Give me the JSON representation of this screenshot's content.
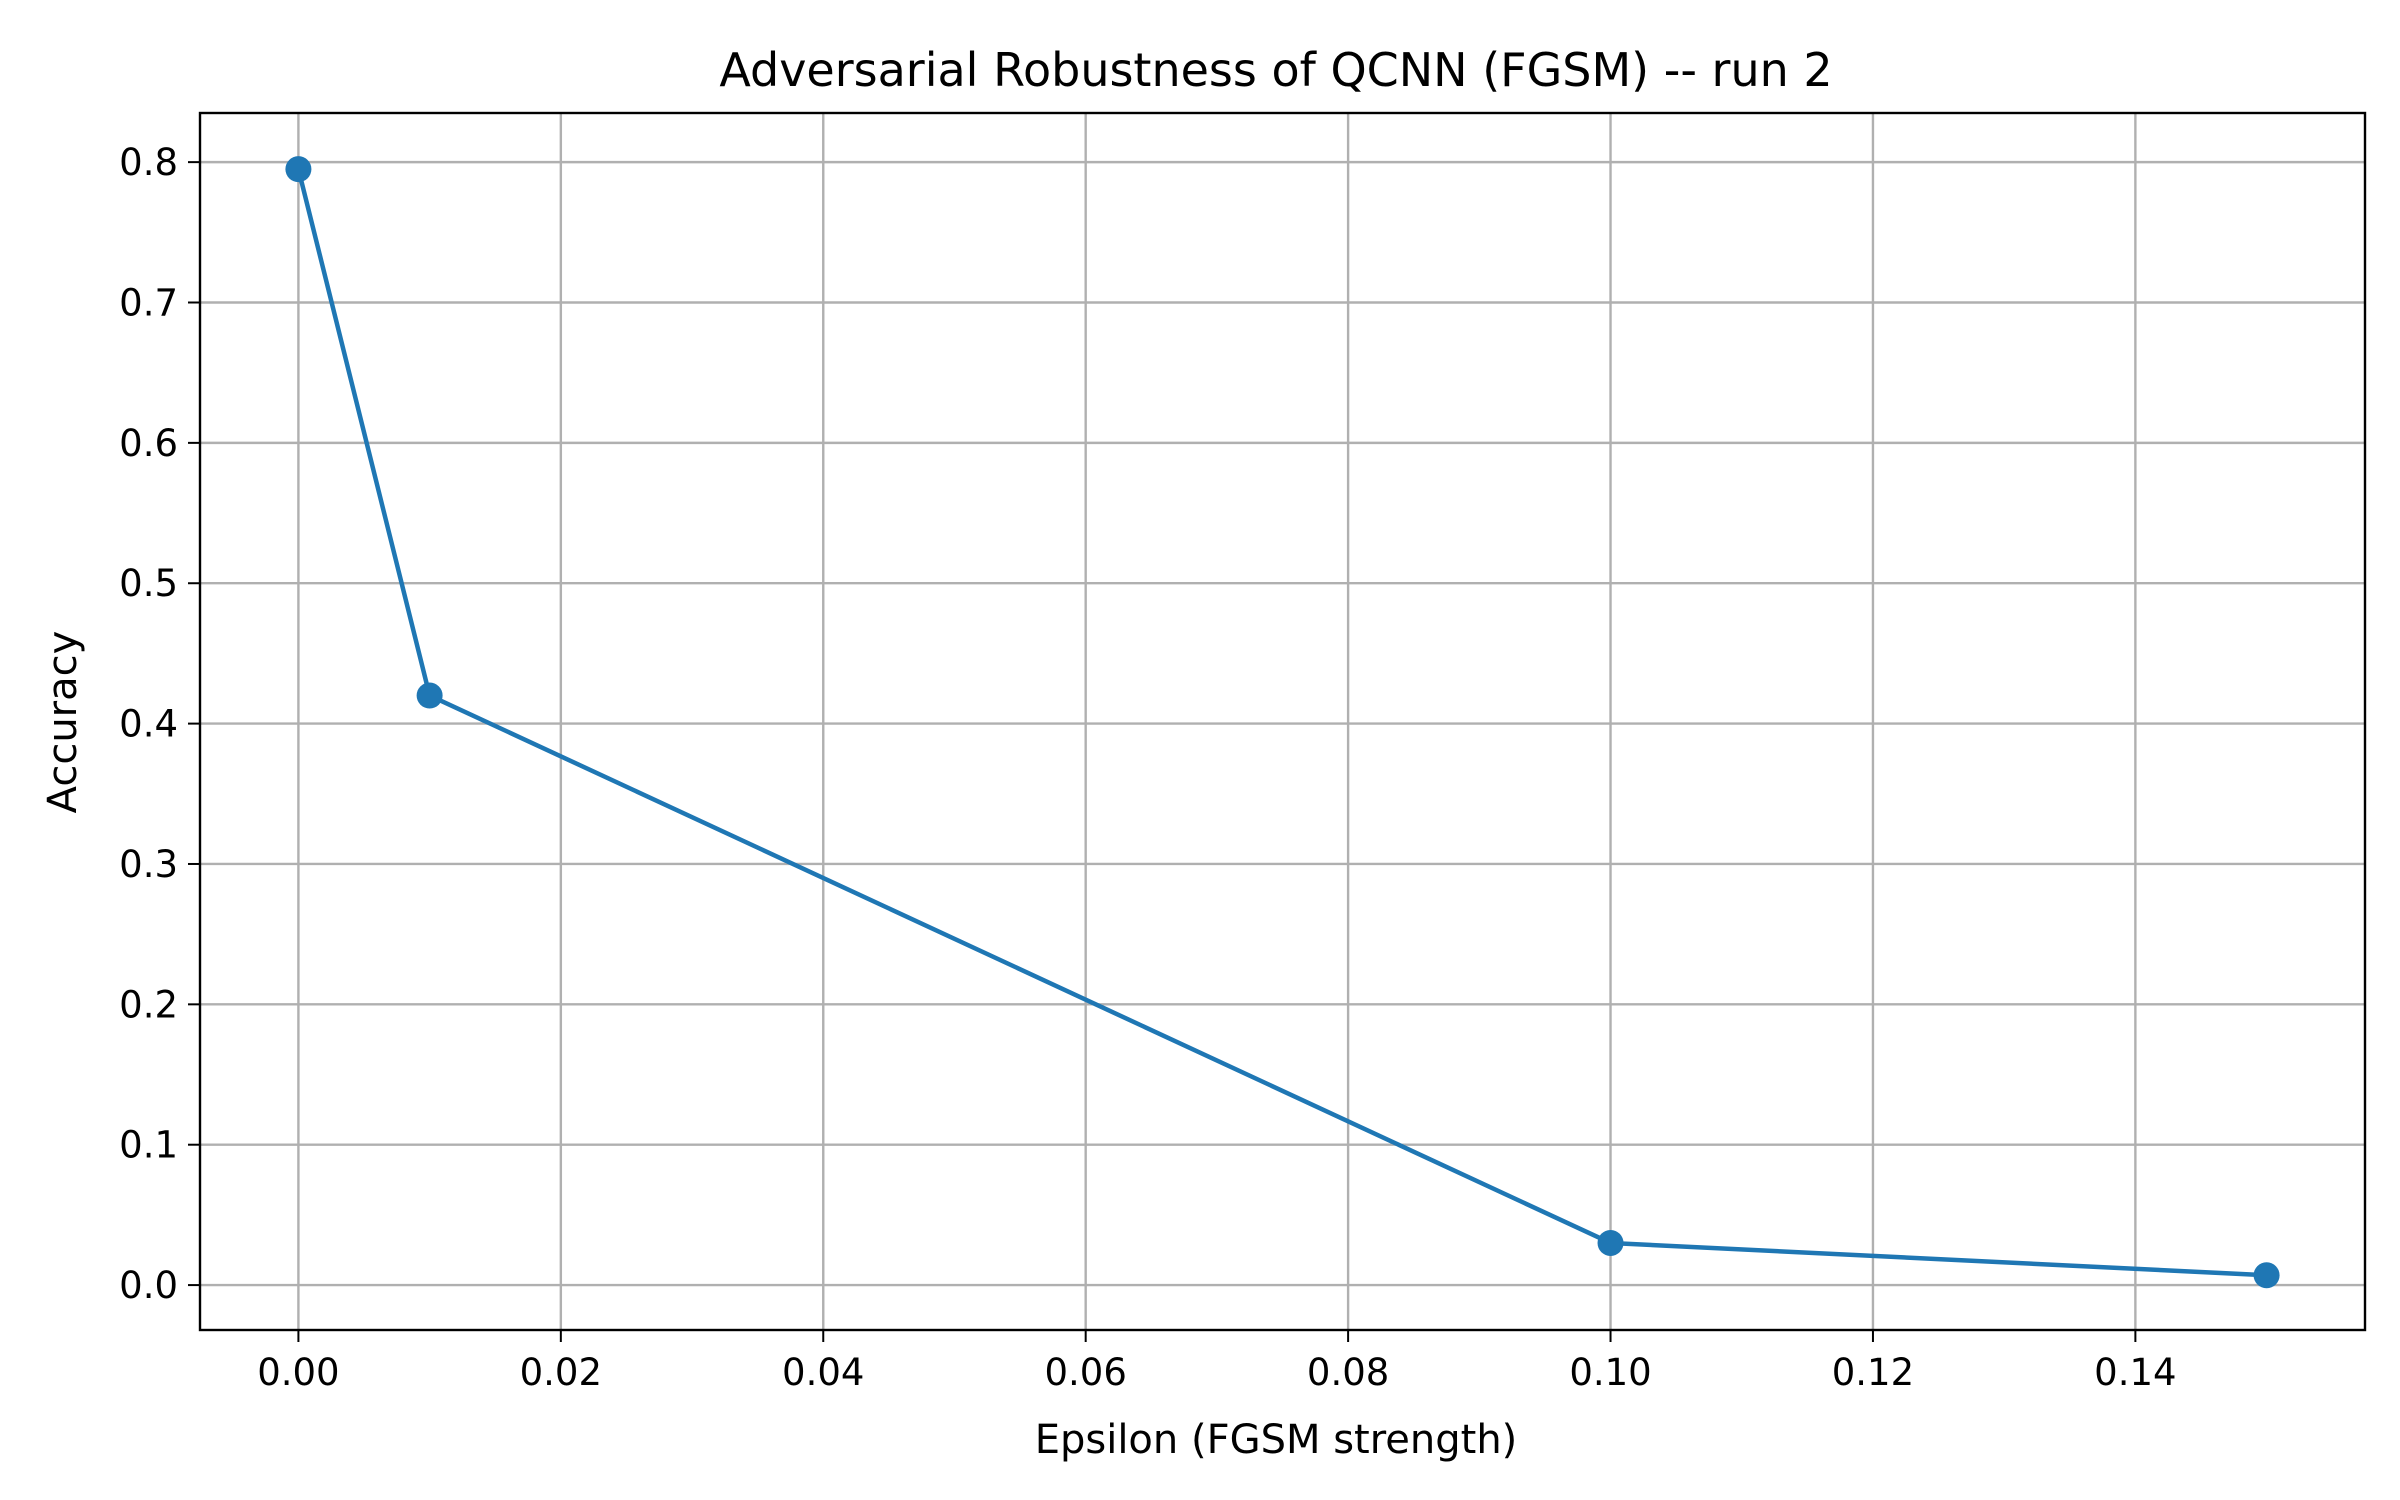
{
  "chart_data": {
    "type": "line",
    "title": "Adversarial Robustness of QCNN (FGSM) -- run 2",
    "xlabel": "Epsilon (FGSM strength)",
    "ylabel": "Accuracy",
    "x": [
      0.0,
      0.01,
      0.1,
      0.15
    ],
    "series": [
      {
        "values": [
          0.795,
          0.42,
          0.03,
          0.007
        ]
      }
    ],
    "xlim": [
      -0.0075,
      0.1575
    ],
    "ylim": [
      -0.032,
      0.835
    ],
    "xticks": [
      0.0,
      0.02,
      0.04,
      0.06,
      0.08,
      0.1,
      0.12,
      0.14
    ],
    "xtick_labels": [
      "0.00",
      "0.02",
      "0.04",
      "0.06",
      "0.08",
      "0.10",
      "0.12",
      "0.14"
    ],
    "yticks": [
      0.0,
      0.1,
      0.2,
      0.3,
      0.4,
      0.5,
      0.6,
      0.7,
      0.8
    ],
    "ytick_labels": [
      "0.0",
      "0.1",
      "0.2",
      "0.3",
      "0.4",
      "0.5",
      "0.6",
      "0.7",
      "0.8"
    ],
    "grid": true,
    "markers": true,
    "line_color": "#1f77b4"
  }
}
